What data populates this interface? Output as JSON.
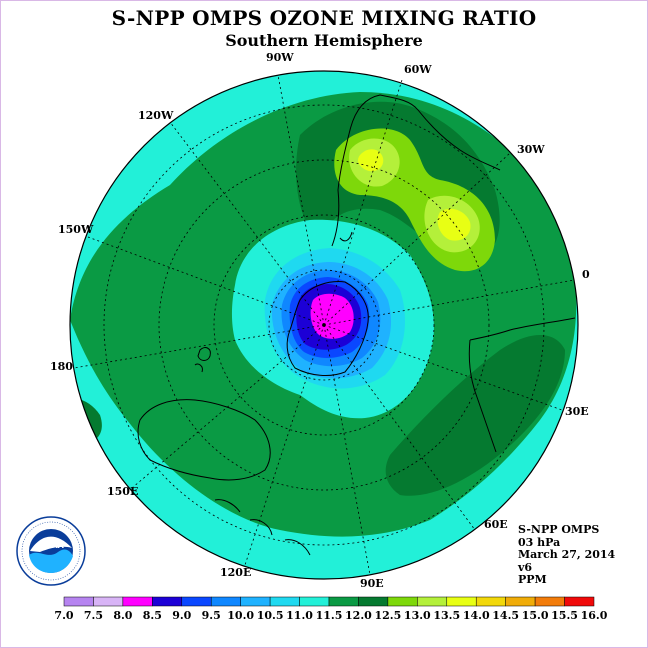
{
  "title": "S-NPP OMPS OZONE MIXING RATIO",
  "subtitle": "Southern Hemisphere",
  "longitude_labels": [
    "90W",
    "60W",
    "30W",
    "0",
    "30E",
    "60E",
    "90E",
    "120E",
    "150E",
    "180",
    "150W",
    "120W"
  ],
  "info": {
    "instrument": "S-NPP OMPS",
    "level": "03 hPa",
    "date": "March 27, 2014",
    "version": "v6",
    "units": "PPM"
  },
  "logo_text": "NOAA",
  "colorbar": {
    "ticks": [
      "7.0",
      "7.5",
      "8.0",
      "8.5",
      "9.0",
      "9.5",
      "10.0",
      "10.5",
      "11.0",
      "11.5",
      "12.0",
      "12.5",
      "13.0",
      "13.5",
      "14.0",
      "14.5",
      "15.0",
      "15.5",
      "16.0"
    ],
    "colors": [
      "#b684f0",
      "#d8b4f6",
      "#ff00ff",
      "#1c00d6",
      "#0a47ff",
      "#0f87ff",
      "#1fb2ff",
      "#1fd9f0",
      "#22f0d8",
      "#0a9a44",
      "#057a30",
      "#7ed80a",
      "#b4f03a",
      "#e8ff14",
      "#f2d80a",
      "#f0ac08",
      "#f27c0a",
      "#f00a0a",
      "#8a5a32"
    ]
  }
}
